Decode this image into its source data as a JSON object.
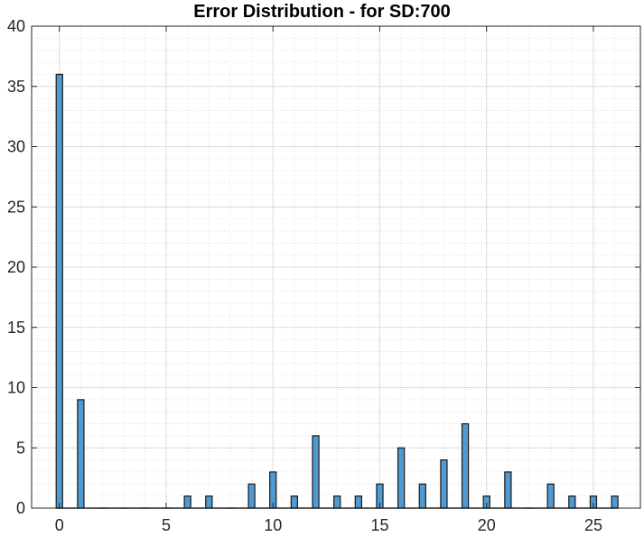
{
  "chart_data": {
    "type": "bar",
    "title": "Error Distribution - for SD:700",
    "xlabel": "",
    "ylabel": "",
    "xlim": [
      -1.3,
      27.2
    ],
    "ylim": [
      0,
      40
    ],
    "x_ticks": [
      0,
      5,
      10,
      15,
      20,
      25
    ],
    "y_ticks": [
      0,
      5,
      10,
      15,
      20,
      25,
      30,
      35,
      40
    ],
    "grid": true,
    "minor_grid": true,
    "bar_color": "#4f9bd1",
    "x": [
      0,
      1,
      2,
      3,
      4,
      5,
      6,
      7,
      8,
      9,
      10,
      11,
      12,
      13,
      14,
      15,
      16,
      17,
      18,
      19,
      20,
      21,
      22,
      23,
      24,
      25,
      26
    ],
    "values": [
      36,
      9,
      0,
      0,
      0,
      0,
      1,
      1,
      0,
      2,
      3,
      1,
      6,
      1,
      1,
      2,
      5,
      2,
      4,
      7,
      1,
      3,
      0,
      2,
      1,
      1,
      1
    ]
  }
}
